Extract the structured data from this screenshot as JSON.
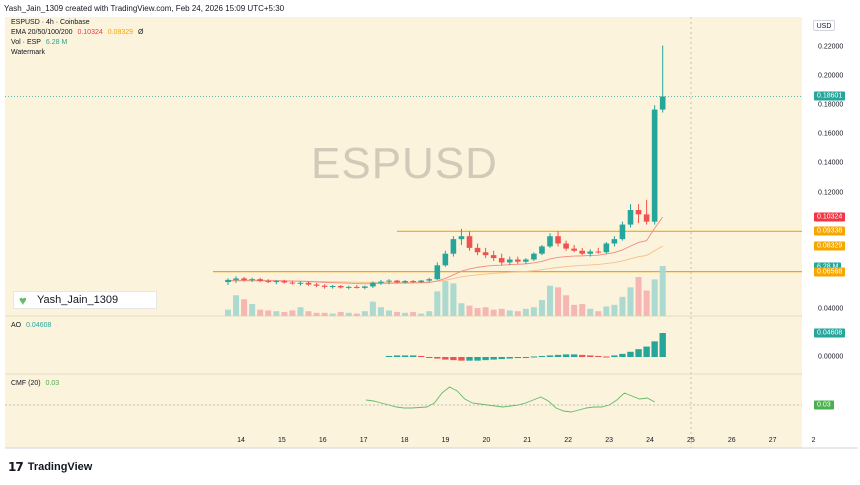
{
  "header": {
    "credit": "Yash_Jain_1309 created with TradingView.com, Feb 24, 2026 15:09 UTC+5:30"
  },
  "legend": {
    "title": "ESPUSD · 4h · Coinbase",
    "ema_label": "EMA 20/50/100/200",
    "ema_value_1": "0.10324",
    "ema_value_2": "0.08329",
    "ema_value_3": "Ø",
    "vol_label": "Vol · ESP",
    "vol_value": "6.28 M",
    "watermark_label": "Watermark",
    "ao_label": "AO",
    "ao_value": "0.04608",
    "cmf_label": "CMF (20)",
    "cmf_value": "0.03"
  },
  "watermark": "ESPUSD",
  "author_badge": "Yash_Jain_1309",
  "price_scale": {
    "currency": "USD",
    "labels": [
      "0.22000",
      "0.20000",
      "0.18000",
      "0.16000",
      "0.14000",
      "0.12000",
      "0.04000"
    ],
    "ao_labels": [
      "0.00000"
    ]
  },
  "price_tags": [
    {
      "text": "0.18601",
      "color": "#26a69a",
      "price": 0.18601
    },
    {
      "text": "0.10324",
      "color": "#f23645",
      "price": 0.10324
    },
    {
      "text": "0.09338",
      "color": "#f7a600",
      "price": 0.09338
    },
    {
      "text": "0.08329",
      "color": "#f7a600",
      "price": 0.08329
    },
    {
      "text": "6.28 M",
      "color": "#26a69a",
      "price": 0.069
    },
    {
      "text": "0.06568",
      "color": "#f7a600",
      "price": 0.06568
    }
  ],
  "ao_tag": {
    "text": "0.04608",
    "color": "#26a69a"
  },
  "cmf_tag": {
    "text": "0.03",
    "color": "#4caf50"
  },
  "time_axis": [
    "14",
    "15",
    "16",
    "17",
    "18",
    "19",
    "20",
    "21",
    "22",
    "23",
    "24",
    "25",
    "26",
    "27",
    "2"
  ],
  "colors": {
    "up": "#26a69a",
    "down": "#ef5350",
    "horizontal_line": "#f7a600",
    "ema_line": "#f5a623",
    "cmf_line": "#66bb6a"
  },
  "horizontal_levels": [
    0.09338,
    0.06568
  ],
  "chart_data": {
    "type": "candlestick",
    "ylim": [
      0.03,
      0.23
    ],
    "candles": [
      {
        "o": 0.0585,
        "h": 0.061,
        "l": 0.0565,
        "c": 0.06
      },
      {
        "o": 0.06,
        "h": 0.0625,
        "l": 0.058,
        "c": 0.061
      },
      {
        "o": 0.061,
        "h": 0.062,
        "l": 0.059,
        "c": 0.0598
      },
      {
        "o": 0.0598,
        "h": 0.0615,
        "l": 0.0585,
        "c": 0.0605
      },
      {
        "o": 0.0605,
        "h": 0.0615,
        "l": 0.0585,
        "c": 0.0592
      },
      {
        "o": 0.0592,
        "h": 0.0605,
        "l": 0.0578,
        "c": 0.0585
      },
      {
        "o": 0.0585,
        "h": 0.06,
        "l": 0.057,
        "c": 0.0592
      },
      {
        "o": 0.0592,
        "h": 0.06,
        "l": 0.0575,
        "c": 0.0582
      },
      {
        "o": 0.0582,
        "h": 0.0595,
        "l": 0.0568,
        "c": 0.0575
      },
      {
        "o": 0.0575,
        "h": 0.059,
        "l": 0.056,
        "c": 0.058
      },
      {
        "o": 0.058,
        "h": 0.059,
        "l": 0.056,
        "c": 0.0568
      },
      {
        "o": 0.0568,
        "h": 0.058,
        "l": 0.055,
        "c": 0.056
      },
      {
        "o": 0.056,
        "h": 0.057,
        "l": 0.054,
        "c": 0.0552
      },
      {
        "o": 0.0552,
        "h": 0.0565,
        "l": 0.054,
        "c": 0.0558
      },
      {
        "o": 0.0558,
        "h": 0.0565,
        "l": 0.054,
        "c": 0.0548
      },
      {
        "o": 0.0548,
        "h": 0.056,
        "l": 0.0535,
        "c": 0.0552
      },
      {
        "o": 0.0552,
        "h": 0.0565,
        "l": 0.054,
        "c": 0.0545
      },
      {
        "o": 0.0545,
        "h": 0.056,
        "l": 0.0535,
        "c": 0.0555
      },
      {
        "o": 0.0555,
        "h": 0.059,
        "l": 0.0545,
        "c": 0.058
      },
      {
        "o": 0.058,
        "h": 0.06,
        "l": 0.0565,
        "c": 0.0588
      },
      {
        "o": 0.0588,
        "h": 0.0605,
        "l": 0.057,
        "c": 0.0595
      },
      {
        "o": 0.0595,
        "h": 0.06,
        "l": 0.0575,
        "c": 0.0582
      },
      {
        "o": 0.0582,
        "h": 0.06,
        "l": 0.0575,
        "c": 0.0592
      },
      {
        "o": 0.0592,
        "h": 0.06,
        "l": 0.0578,
        "c": 0.0585
      },
      {
        "o": 0.0585,
        "h": 0.06,
        "l": 0.0578,
        "c": 0.0595
      },
      {
        "o": 0.0595,
        "h": 0.0615,
        "l": 0.0585,
        "c": 0.0605
      },
      {
        "o": 0.0605,
        "h": 0.072,
        "l": 0.06,
        "c": 0.07
      },
      {
        "o": 0.07,
        "h": 0.08,
        "l": 0.069,
        "c": 0.078
      },
      {
        "o": 0.078,
        "h": 0.09,
        "l": 0.076,
        "c": 0.088
      },
      {
        "o": 0.088,
        "h": 0.095,
        "l": 0.084,
        "c": 0.09
      },
      {
        "o": 0.09,
        "h": 0.0935,
        "l": 0.08,
        "c": 0.082
      },
      {
        "o": 0.082,
        "h": 0.085,
        "l": 0.077,
        "c": 0.079
      },
      {
        "o": 0.079,
        "h": 0.082,
        "l": 0.075,
        "c": 0.077
      },
      {
        "o": 0.077,
        "h": 0.08,
        "l": 0.073,
        "c": 0.075
      },
      {
        "o": 0.075,
        "h": 0.078,
        "l": 0.07,
        "c": 0.072
      },
      {
        "o": 0.072,
        "h": 0.076,
        "l": 0.07,
        "c": 0.074
      },
      {
        "o": 0.074,
        "h": 0.076,
        "l": 0.071,
        "c": 0.0725
      },
      {
        "o": 0.0725,
        "h": 0.075,
        "l": 0.071,
        "c": 0.074
      },
      {
        "o": 0.074,
        "h": 0.079,
        "l": 0.073,
        "c": 0.078
      },
      {
        "o": 0.078,
        "h": 0.084,
        "l": 0.077,
        "c": 0.083
      },
      {
        "o": 0.083,
        "h": 0.092,
        "l": 0.082,
        "c": 0.09
      },
      {
        "o": 0.09,
        "h": 0.0935,
        "l": 0.083,
        "c": 0.085
      },
      {
        "o": 0.085,
        "h": 0.087,
        "l": 0.08,
        "c": 0.0815
      },
      {
        "o": 0.0815,
        "h": 0.084,
        "l": 0.079,
        "c": 0.08
      },
      {
        "o": 0.08,
        "h": 0.082,
        "l": 0.077,
        "c": 0.078
      },
      {
        "o": 0.078,
        "h": 0.081,
        "l": 0.076,
        "c": 0.0795
      },
      {
        "o": 0.0795,
        "h": 0.082,
        "l": 0.078,
        "c": 0.079
      },
      {
        "o": 0.079,
        "h": 0.086,
        "l": 0.078,
        "c": 0.085
      },
      {
        "o": 0.085,
        "h": 0.09,
        "l": 0.083,
        "c": 0.088
      },
      {
        "o": 0.088,
        "h": 0.1,
        "l": 0.087,
        "c": 0.098
      },
      {
        "o": 0.098,
        "h": 0.112,
        "l": 0.096,
        "c": 0.108
      },
      {
        "o": 0.108,
        "h": 0.112,
        "l": 0.099,
        "c": 0.105
      },
      {
        "o": 0.105,
        "h": 0.115,
        "l": 0.098,
        "c": 0.1
      },
      {
        "o": 0.1,
        "h": 0.18,
        "l": 0.098,
        "c": 0.177
      },
      {
        "o": 0.177,
        "h": 0.221,
        "l": 0.175,
        "c": 0.186
      }
    ],
    "volume": [
      0.8,
      2.6,
      2.1,
      1.5,
      0.8,
      0.7,
      0.6,
      0.5,
      0.7,
      1.1,
      0.6,
      0.4,
      0.4,
      0.3,
      0.5,
      0.4,
      0.3,
      0.6,
      1.8,
      1.1,
      0.7,
      0.5,
      0.4,
      0.5,
      0.3,
      0.6,
      3.1,
      4.4,
      4.1,
      1.6,
      1.3,
      1.0,
      1.1,
      0.8,
      0.9,
      0.7,
      0.6,
      0.9,
      1.1,
      2.0,
      3.8,
      3.6,
      2.6,
      1.4,
      1.5,
      0.9,
      0.6,
      1.2,
      1.4,
      2.4,
      3.6,
      4.9,
      3.2,
      4.6,
      6.28
    ],
    "ema20": [
      0.0595,
      0.0597,
      0.0597,
      0.0598,
      0.0597,
      0.0596,
      0.0595,
      0.0594,
      0.0592,
      0.0591,
      0.0589,
      0.0586,
      0.0583,
      0.0581,
      0.0579,
      0.0577,
      0.0575,
      0.0573,
      0.0574,
      0.0576,
      0.0577,
      0.0577,
      0.0578,
      0.0579,
      0.058,
      0.0582,
      0.0593,
      0.061,
      0.0635,
      0.066,
      0.0675,
      0.0686,
      0.0694,
      0.0699,
      0.0701,
      0.0705,
      0.0707,
      0.071,
      0.0717,
      0.0727,
      0.0744,
      0.0754,
      0.076,
      0.0764,
      0.0765,
      0.0768,
      0.077,
      0.0778,
      0.0788,
      0.0806,
      0.0832,
      0.0857,
      0.087,
      0.0955,
      0.1032
    ],
    "ema50": [
      0.0592,
      0.0593,
      0.0593,
      0.0593,
      0.0593,
      0.0593,
      0.0593,
      0.0592,
      0.0592,
      0.0591,
      0.059,
      0.0589,
      0.0588,
      0.0587,
      0.0586,
      0.0585,
      0.0584,
      0.0583,
      0.0583,
      0.0583,
      0.0584,
      0.0584,
      0.0584,
      0.0584,
      0.0585,
      0.0585,
      0.059,
      0.0598,
      0.0609,
      0.0621,
      0.0629,
      0.0635,
      0.064,
      0.0645,
      0.0648,
      0.0652,
      0.0655,
      0.0658,
      0.0663,
      0.067,
      0.0679,
      0.0686,
      0.0691,
      0.0696,
      0.0699,
      0.0703,
      0.0706,
      0.0712,
      0.0719,
      0.073,
      0.0745,
      0.0759,
      0.0768,
      0.08,
      0.0833
    ],
    "ao": [
      0.002,
      0.003,
      0.003,
      0.003,
      0.002,
      0.0,
      -0.003,
      -0.005,
      -0.006,
      -0.007,
      -0.007,
      -0.007,
      -0.006,
      -0.005,
      -0.004,
      -0.003,
      -0.002,
      -0.001,
      0.001,
      0.002,
      0.003,
      0.004,
      0.005,
      0.005,
      0.004,
      0.003,
      0.002,
      0.001,
      0.003,
      0.006,
      0.01,
      0.015,
      0.02,
      0.03,
      0.046
    ],
    "cmf": [
      0.05,
      0.04,
      0.02,
      0.0,
      -0.02,
      -0.03,
      -0.03,
      -0.025,
      -0.02,
      0.02,
      0.12,
      0.18,
      0.14,
      0.06,
      0.02,
      0.01,
      0.0,
      -0.01,
      -0.02,
      -0.01,
      0.0,
      0.02,
      0.05,
      0.08,
      0.04,
      -0.03,
      -0.06,
      -0.07,
      -0.05,
      -0.03,
      -0.02,
      -0.02,
      0.0,
      0.05,
      0.12,
      0.09,
      0.06,
      0.07,
      0.03
    ],
    "ao_ylim": [
      -0.012,
      0.05
    ],
    "cmf_ylim": [
      -0.1,
      0.2
    ],
    "last_price": 0.18601
  }
}
